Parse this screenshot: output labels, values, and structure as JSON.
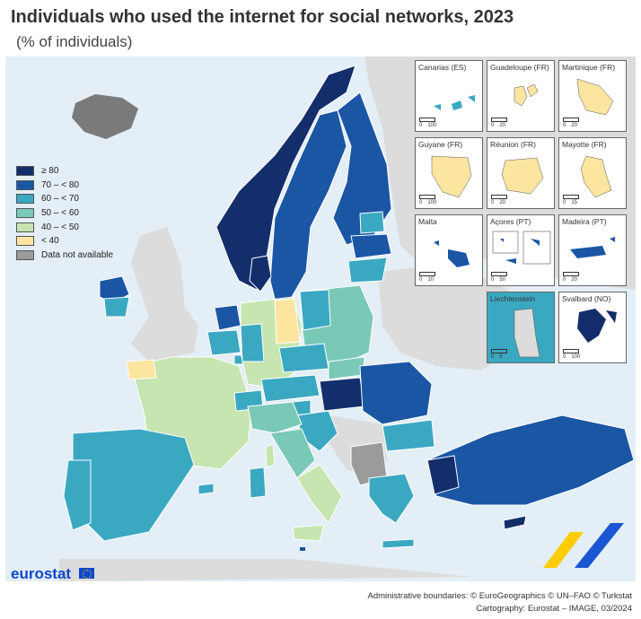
{
  "title": "Individuals who used the internet for social networks, 2023",
  "subtitle": "(% of individuals)",
  "legend": [
    {
      "label": "≥ 80",
      "color": "#142e6b"
    },
    {
      "label": "70 – < 80",
      "color": "#1a56a4"
    },
    {
      "label": "60 – < 70",
      "color": "#3ba8c2"
    },
    {
      "label": "50 – < 60",
      "color": "#79c9b6"
    },
    {
      "label": "40 – < 50",
      "color": "#c6e5b0"
    },
    {
      "label": "< 40",
      "color": "#fbe59f"
    },
    {
      "label": "Data not available",
      "color": "#9b9b9b"
    }
  ],
  "colors": {
    "sea": "#e3eef6",
    "non_eu_land": "#dcdcdc",
    "border": "#ffffff"
  },
  "insets": [
    {
      "name": "Canarias (ES)",
      "scale": [
        "0",
        "100"
      ]
    },
    {
      "name": "Guadeloupe (FR)",
      "scale": [
        "0",
        "20"
      ]
    },
    {
      "name": "Martinique (FR)",
      "scale": [
        "0",
        "20"
      ]
    },
    {
      "name": "Guyane (FR)",
      "scale": [
        "0",
        "100"
      ]
    },
    {
      "name": "Réunion (FR)",
      "scale": [
        "0",
        "20"
      ]
    },
    {
      "name": "Mayotte (FR)",
      "scale": [
        "0",
        "15"
      ]
    },
    {
      "name": "Malta",
      "scale": [
        "0",
        "10"
      ]
    },
    {
      "name": "Açores (PT)",
      "scale": [
        "0",
        "50"
      ]
    },
    {
      "name": "Madeira (PT)",
      "scale": [
        "0",
        "20"
      ]
    },
    {
      "name": "Liechtenstein",
      "scale": [
        "0",
        "5"
      ]
    },
    {
      "name": "Svalbard (NO)",
      "scale": [
        "0",
        "100"
      ]
    }
  ],
  "logo": "eurostat",
  "credits": {
    "line1": "Administrative boundaries: © EuroGeographics © UN–FAO © Turkstat",
    "line2": "Cartography: Eurostat – IMAGE, 03/2024"
  }
}
